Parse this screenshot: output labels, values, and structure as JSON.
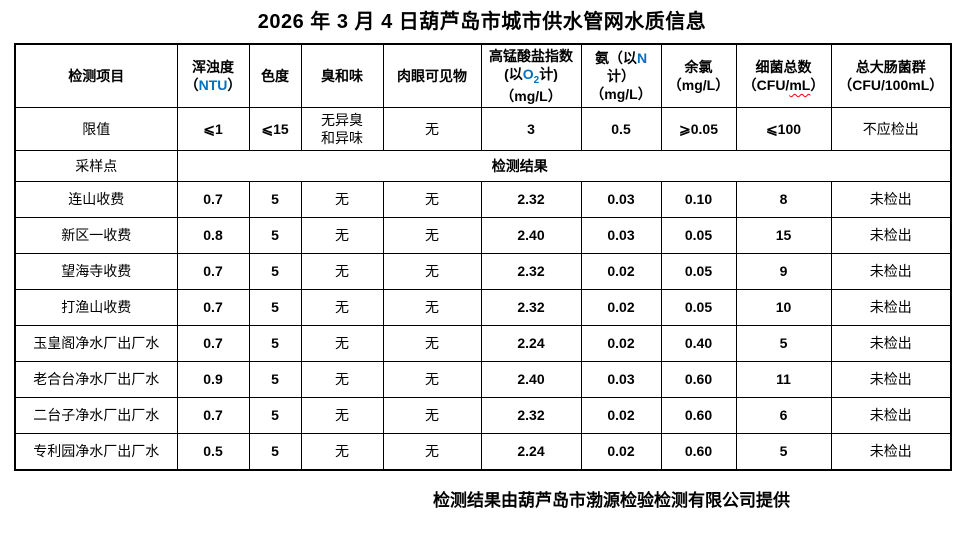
{
  "title": "2026 年 3 月 4 日葫芦岛市城市供水管网水质信息",
  "colors": {
    "accent_blue": "#0070C0",
    "squiggle_red": "#FF0000"
  },
  "table": {
    "header": {
      "item": "检测项目",
      "turbidity_zh": "浑浊度",
      "turbidity_open": "（",
      "turbidity_unit": "NTU",
      "turbidity_close": "）",
      "color": "色度",
      "odor": "臭和味",
      "visible": "肉眼可见物",
      "cod_prefix": "高锰酸盐指数(以",
      "cod_o": "O",
      "cod_sub": "2",
      "cod_suffix": "计)",
      "cod_unit": "（mg/L）",
      "ammonia_prefix": "氨（以",
      "ammonia_n": "N",
      "ammonia_suffix": "计）",
      "ammonia_unit": "（mg/L）",
      "chlorine": "余氯",
      "chlorine_unit": "（mg/L）",
      "bacteria": "细菌总数",
      "bacteria_unit_prefix": "（CFU/",
      "bacteria_unit_ml": "mL",
      "bacteria_unit_close": "）",
      "coliform": "总大肠菌群",
      "coliform_unit": "（CFU/100mL）"
    },
    "limits": {
      "label": "限值",
      "values": [
        "⩽1",
        "⩽15",
        "无异臭\n和异味",
        "无",
        "3",
        "0.5",
        "⩾0.05",
        "⩽100",
        "不应检出"
      ]
    },
    "sample_row": {
      "label": "采样点",
      "result_label": "检测结果"
    },
    "rows": [
      {
        "name": "连山收费",
        "values": [
          "0.7",
          "5",
          "无",
          "无",
          "2.32",
          "0.03",
          "0.10",
          "8",
          "未检出"
        ]
      },
      {
        "name": "新区一收费",
        "values": [
          "0.8",
          "5",
          "无",
          "无",
          "2.40",
          "0.03",
          "0.05",
          "15",
          "未检出"
        ]
      },
      {
        "name": "望海寺收费",
        "values": [
          "0.7",
          "5",
          "无",
          "无",
          "2.32",
          "0.02",
          "0.05",
          "9",
          "未检出"
        ]
      },
      {
        "name": "打渔山收费",
        "values": [
          "0.7",
          "5",
          "无",
          "无",
          "2.32",
          "0.02",
          "0.05",
          "10",
          "未检出"
        ]
      },
      {
        "name": "玉皇阁净水厂出厂水",
        "values": [
          "0.7",
          "5",
          "无",
          "无",
          "2.24",
          "0.02",
          "0.40",
          "5",
          "未检出"
        ]
      },
      {
        "name": "老合台净水厂出厂水",
        "values": [
          "0.9",
          "5",
          "无",
          "无",
          "2.40",
          "0.03",
          "0.60",
          "11",
          "未检出"
        ]
      },
      {
        "name": "二台子净水厂出厂水",
        "values": [
          "0.7",
          "5",
          "无",
          "无",
          "2.32",
          "0.02",
          "0.60",
          "6",
          "未检出"
        ]
      },
      {
        "name": "专利园净水厂出厂水",
        "values": [
          "0.5",
          "5",
          "无",
          "无",
          "2.24",
          "0.02",
          "0.60",
          "5",
          "未检出"
        ]
      }
    ]
  },
  "footer": "检测结果由葫芦岛市渤源检验检测有限公司提供"
}
